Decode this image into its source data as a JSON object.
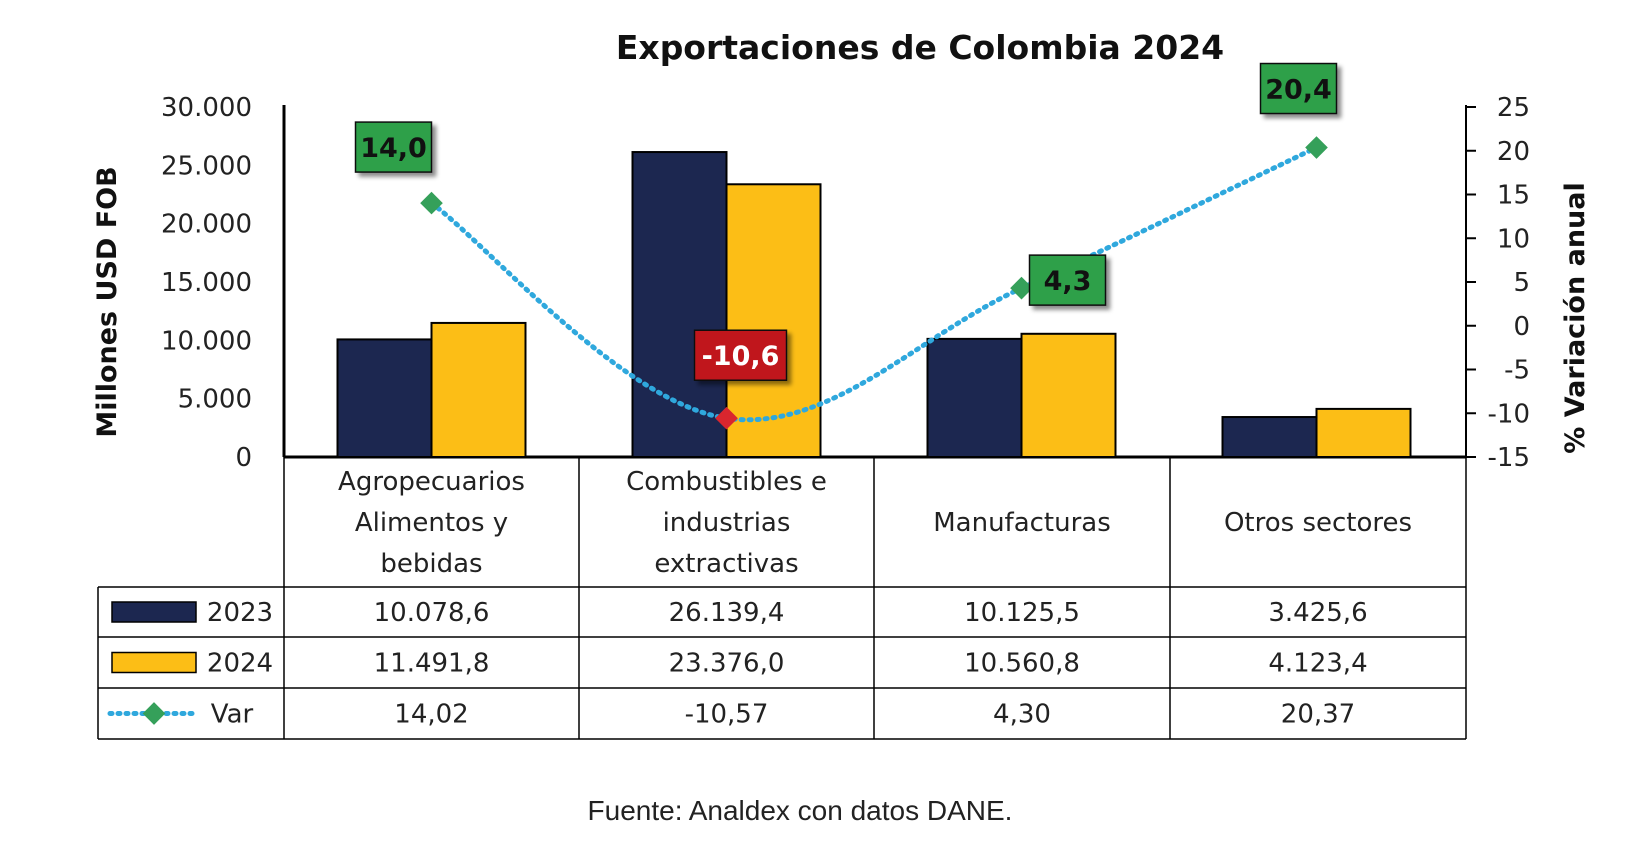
{
  "chart_data": {
    "type": "bar",
    "title": "Exportaciones de Colombia 2024",
    "ylabel": "Millones USD FOB",
    "y2label": "% Variación anual",
    "ylim": [
      0,
      30000
    ],
    "y2lim": [
      -15,
      25
    ],
    "yticks": [
      "0",
      "5.000",
      "10.000",
      "15.000",
      "20.000",
      "25.000",
      "30.000"
    ],
    "y2ticks": [
      "-15",
      "-10",
      "-5",
      "0",
      "5",
      "10",
      "15",
      "20",
      "25"
    ],
    "categories": [
      "Agropecuarios Alimentos y bebidas",
      "Combustibles e industrias extractivas",
      "Manufacturas",
      "Otros sectores"
    ],
    "category_lines": [
      [
        "Agropecuarios",
        "Alimentos y",
        "bebidas"
      ],
      [
        "Combustibles e",
        "industrias",
        "extractivas"
      ],
      [
        "Manufacturas"
      ],
      [
        "Otros sectores"
      ]
    ],
    "series": [
      {
        "name": "2023",
        "kind": "bar",
        "color": "#1C2750",
        "values": [
          10078.6,
          26139.4,
          10125.5,
          3425.6
        ],
        "labels": [
          "10.078,6",
          "26.139,4",
          "10.125,5",
          "3.425,6"
        ]
      },
      {
        "name": "2024",
        "kind": "bar",
        "color": "#FCBE16",
        "values": [
          11491.8,
          23376.0,
          10560.8,
          4123.4
        ],
        "labels": [
          "11.491,8",
          "23.376,0",
          "10.560,8",
          "4.123,4"
        ]
      },
      {
        "name": "Var",
        "kind": "line",
        "axis": "secondary",
        "color": "#2FA8DD",
        "marker_color": "#35A05A",
        "values": [
          14.02,
          -10.57,
          4.3,
          20.37
        ],
        "labels": [
          "14,02",
          "-10,57",
          "4,30",
          "20,37"
        ]
      }
    ],
    "data_labels": [
      {
        "text": "14,0",
        "bg": "#2EA04A",
        "color": "#111111",
        "marker": "#35A05A"
      },
      {
        "text": "-10,6",
        "bg": "#C0161F",
        "color": "#ffffff",
        "marker": "#D9262E"
      },
      {
        "text": "4,3",
        "bg": "#2EA04A",
        "color": "#111111",
        "marker": "#35A05A"
      },
      {
        "text": "20,4",
        "bg": "#2EA04A",
        "color": "#111111",
        "marker": "#35A05A"
      }
    ],
    "source": "Fuente: Analdex con datos DANE."
  }
}
